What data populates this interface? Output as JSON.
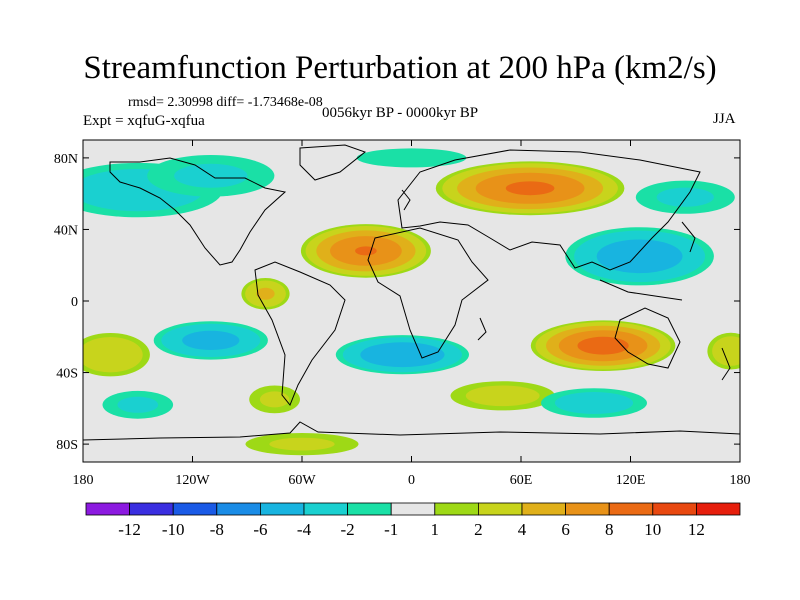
{
  "header": {
    "title": "Streamfunction Perturbation at 200 hPa (km2/s)",
    "stats": "rmsd= 2.30998 diff= -1.73468e-08",
    "experiment": "Expt = xqfuG-xqfua",
    "period": "0056kyr BP - 0000kyr BP",
    "season": "JJA"
  },
  "chart_data": {
    "type": "heatmap",
    "title": "Streamfunction Perturbation at 200 hPa (km2/s)",
    "xlabel": "",
    "ylabel": "",
    "xlim": [
      -180,
      180
    ],
    "ylim": [
      -90,
      90
    ],
    "xticks": [
      {
        "value": -180,
        "label": "180"
      },
      {
        "value": -120,
        "label": "120W"
      },
      {
        "value": -60,
        "label": "60W"
      },
      {
        "value": 0,
        "label": "0"
      },
      {
        "value": 60,
        "label": "60E"
      },
      {
        "value": 120,
        "label": "120E"
      },
      {
        "value": 180,
        "label": "180"
      }
    ],
    "yticks": [
      {
        "value": 80,
        "label": "80N"
      },
      {
        "value": 40,
        "label": "40N"
      },
      {
        "value": 0,
        "label": "0"
      },
      {
        "value": -40,
        "label": "40S"
      },
      {
        "value": -80,
        "label": "80S"
      }
    ],
    "colorbar": {
      "labels": [
        "-12",
        "-10",
        "-8",
        "-6",
        "-4",
        "-2",
        "-1",
        "1",
        "2",
        "4",
        "6",
        "8",
        "10",
        "12"
      ],
      "colors": [
        "#8c1ae0",
        "#3a2ee0",
        "#1a5ae6",
        "#1a8ce6",
        "#18b4e0",
        "#1ad0d0",
        "#1ae0a6",
        "#e6e6e6",
        "#9ed916",
        "#c8d41c",
        "#e0b01a",
        "#e89218",
        "#ea6a14",
        "#e84810",
        "#e61e0c"
      ]
    },
    "centers": [
      {
        "lon": -150,
        "lat": 62,
        "value": -3.5,
        "rx": 55,
        "ry": 18
      },
      {
        "lon": -110,
        "lat": 70,
        "value": -2.5,
        "rx": 45,
        "ry": 15
      },
      {
        "lon": 0,
        "lat": 80,
        "value": -1.8,
        "rx": 45,
        "ry": 8
      },
      {
        "lon": -25,
        "lat": 28,
        "value": 8.2,
        "rx": 38,
        "ry": 16
      },
      {
        "lon": 65,
        "lat": 63,
        "value": 8.5,
        "rx": 55,
        "ry": 16
      },
      {
        "lon": 125,
        "lat": 25,
        "value": -5.5,
        "rx": 45,
        "ry": 18
      },
      {
        "lon": 150,
        "lat": 58,
        "value": -2.5,
        "rx": 35,
        "ry": 12
      },
      {
        "lon": -80,
        "lat": 4,
        "value": 4.5,
        "rx": 15,
        "ry": 10
      },
      {
        "lon": -110,
        "lat": -22,
        "value": -5,
        "rx": 35,
        "ry": 12
      },
      {
        "lon": -5,
        "lat": -30,
        "value": -6,
        "rx": 40,
        "ry": 12
      },
      {
        "lon": 105,
        "lat": -25,
        "value": 9,
        "rx": 42,
        "ry": 15
      },
      {
        "lon": -165,
        "lat": -30,
        "value": 4,
        "rx": 25,
        "ry": 14
      },
      {
        "lon": 175,
        "lat": -28,
        "value": 3.8,
        "rx": 15,
        "ry": 12
      },
      {
        "lon": 50,
        "lat": -53,
        "value": 3,
        "rx": 35,
        "ry": 10
      },
      {
        "lon": 100,
        "lat": -57,
        "value": -3.2,
        "rx": 35,
        "ry": 10
      },
      {
        "lon": -150,
        "lat": -58,
        "value": -2.5,
        "rx": 25,
        "ry": 10
      },
      {
        "lon": -75,
        "lat": -55,
        "value": 2.5,
        "rx": 18,
        "ry": 10
      },
      {
        "lon": -60,
        "lat": -80,
        "value": 2.5,
        "rx": 40,
        "ry": 8
      }
    ]
  }
}
